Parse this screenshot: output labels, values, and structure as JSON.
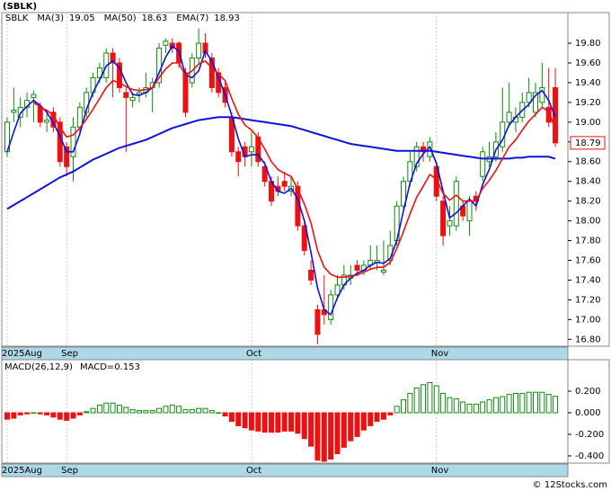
{
  "title": "(SBLK)",
  "footer": "© 12Stocks.com",
  "chart_data": [
    {
      "type": "candlestick",
      "legend_title": "SBLK",
      "categories": [
        "2025Aug",
        null,
        null,
        null,
        null,
        null,
        null,
        null,
        null,
        "Sep",
        null,
        null,
        null,
        null,
        null,
        null,
        null,
        null,
        null,
        null,
        null,
        null,
        null,
        null,
        null,
        null,
        null,
        null,
        null,
        null,
        null,
        null,
        null,
        null,
        null,
        null,
        null,
        "Oct",
        null,
        null,
        null,
        null,
        null,
        null,
        null,
        null,
        null,
        null,
        null,
        null,
        null,
        null,
        null,
        null,
        null,
        null,
        null,
        null,
        null,
        null,
        null,
        null,
        null,
        null,
        null,
        "Nov",
        null,
        null,
        null,
        null,
        null,
        null,
        null,
        null,
        null,
        null,
        null,
        null,
        null,
        null,
        null,
        null,
        null,
        null
      ],
      "open": [
        18.7,
        19.1,
        19.05,
        19.15,
        19.25,
        19.15,
        19.0,
        19.1,
        19.0,
        18.75,
        18.65,
        18.95,
        19.1,
        19.3,
        19.45,
        19.45,
        19.7,
        19.6,
        19.3,
        19.22,
        19.28,
        19.3,
        19.35,
        19.4,
        19.78,
        19.8,
        19.8,
        19.5,
        19.4,
        19.65,
        19.8,
        19.65,
        19.5,
        19.35,
        19.05,
        18.7,
        18.75,
        18.7,
        18.85,
        18.55,
        18.4,
        18.35,
        18.4,
        18.3,
        18.35,
        17.95,
        17.5,
        17.1,
        17.1,
        17.0,
        17.25,
        17.35,
        17.42,
        17.55,
        17.5,
        17.55,
        17.58,
        17.48,
        17.6,
        17.8,
        18.15,
        18.4,
        18.55,
        18.75,
        18.65,
        18.55,
        18.2,
        17.95,
        17.95,
        18.15,
        18.0,
        18.25,
        18.45,
        18.6,
        18.65,
        18.75,
        19.0,
        19.0,
        19.05,
        19.2,
        19.1,
        19.2,
        19.15,
        19.35
      ],
      "high": [
        19.05,
        19.35,
        19.25,
        19.3,
        19.32,
        19.2,
        19.1,
        19.15,
        19.05,
        18.8,
        19.05,
        19.2,
        19.35,
        19.5,
        19.6,
        19.75,
        19.75,
        19.65,
        19.35,
        19.3,
        19.35,
        19.5,
        19.45,
        19.8,
        19.85,
        19.85,
        19.82,
        19.55,
        19.7,
        19.95,
        19.9,
        19.7,
        19.55,
        19.4,
        19.1,
        18.75,
        18.8,
        18.9,
        18.9,
        18.6,
        18.45,
        18.45,
        18.5,
        18.45,
        18.4,
        18.0,
        17.6,
        17.15,
        17.45,
        17.3,
        17.45,
        17.55,
        17.55,
        17.6,
        17.6,
        17.75,
        17.75,
        17.8,
        17.9,
        18.2,
        18.45,
        18.7,
        18.8,
        18.8,
        18.85,
        18.6,
        18.25,
        18.15,
        18.45,
        18.2,
        18.25,
        18.3,
        18.75,
        18.8,
        18.9,
        19.35,
        19.4,
        19.15,
        19.3,
        19.45,
        19.4,
        19.6,
        19.55,
        19.55
      ],
      "low": [
        18.65,
        19.0,
        18.95,
        19.05,
        19.0,
        18.95,
        18.9,
        18.9,
        18.55,
        18.45,
        18.4,
        18.9,
        19.05,
        19.25,
        19.4,
        19.4,
        19.25,
        19.3,
        18.7,
        19.15,
        19.2,
        19.25,
        19.1,
        19.35,
        19.7,
        19.7,
        19.55,
        19.05,
        19.35,
        19.6,
        19.65,
        19.3,
        19.25,
        19.15,
        18.65,
        18.45,
        18.55,
        18.55,
        18.55,
        18.35,
        18.15,
        18.25,
        18.3,
        18.25,
        17.9,
        17.65,
        17.35,
        16.75,
        16.95,
        16.95,
        17.2,
        17.3,
        17.35,
        17.45,
        17.45,
        17.5,
        17.5,
        17.45,
        17.55,
        17.75,
        18.1,
        18.35,
        18.5,
        18.6,
        18.6,
        18.2,
        17.75,
        17.85,
        17.9,
        18.0,
        17.85,
        18.1,
        18.4,
        18.55,
        18.6,
        18.7,
        18.95,
        18.9,
        19.0,
        19.15,
        19.05,
        19.15,
        18.95,
        18.75
      ],
      "close": [
        19.0,
        19.12,
        19.15,
        19.22,
        19.28,
        19.0,
        19.02,
        18.95,
        18.6,
        18.55,
        18.95,
        19.15,
        19.3,
        19.45,
        19.55,
        19.7,
        19.6,
        19.35,
        19.25,
        19.25,
        19.3,
        19.35,
        19.4,
        19.75,
        19.82,
        19.75,
        19.6,
        19.1,
        19.65,
        19.8,
        19.7,
        19.35,
        19.3,
        19.2,
        18.7,
        18.6,
        18.65,
        18.75,
        18.6,
        18.4,
        18.2,
        18.3,
        18.35,
        18.35,
        17.95,
        17.7,
        17.4,
        16.85,
        17.05,
        17.25,
        17.35,
        17.45,
        17.45,
        17.5,
        17.55,
        17.6,
        17.6,
        17.5,
        17.75,
        18.15,
        18.4,
        18.6,
        18.75,
        18.7,
        18.8,
        18.25,
        17.85,
        18.0,
        18.4,
        18.05,
        18.2,
        18.2,
        18.7,
        18.65,
        18.8,
        19.0,
        19.1,
        19.05,
        19.2,
        19.3,
        19.3,
        19.35,
        19.0,
        18.79
      ],
      "up_color": "#118811",
      "down_color": "#ee1111",
      "series": [
        {
          "name": "MA(3)",
          "color": "#1111dd",
          "values": [
            18.7,
            18.9,
            19.09,
            19.16,
            19.22,
            19.17,
            19.1,
            18.99,
            18.86,
            18.7,
            18.7,
            18.88,
            19.13,
            19.3,
            19.43,
            19.57,
            19.62,
            19.55,
            19.4,
            19.28,
            19.27,
            19.3,
            19.35,
            19.5,
            19.66,
            19.77,
            19.72,
            19.48,
            19.45,
            19.52,
            19.72,
            19.62,
            19.45,
            19.28,
            19.07,
            18.83,
            18.65,
            18.67,
            18.67,
            18.58,
            18.4,
            18.3,
            18.28,
            18.33,
            18.22,
            18.0,
            17.68,
            17.32,
            17.1,
            17.05,
            17.22,
            17.35,
            17.42,
            17.47,
            17.5,
            17.55,
            17.58,
            17.57,
            17.62,
            17.8,
            18.1,
            18.38,
            18.58,
            18.68,
            18.75,
            18.58,
            18.3,
            18.03,
            18.08,
            18.15,
            18.22,
            18.15,
            18.37,
            18.52,
            18.72,
            18.82,
            18.97,
            19.05,
            19.12,
            19.18,
            19.27,
            19.32,
            19.22,
            19.05
          ]
        },
        {
          "name": "MA(50)",
          "color": "#1111dd",
          "values": [
            18.12,
            18.16,
            18.2,
            18.24,
            18.28,
            18.32,
            18.36,
            18.4,
            18.44,
            18.47,
            18.5,
            18.54,
            18.58,
            18.62,
            18.65,
            18.68,
            18.71,
            18.74,
            18.76,
            18.78,
            18.8,
            18.82,
            18.85,
            18.88,
            18.91,
            18.94,
            18.96,
            18.98,
            19.0,
            19.02,
            19.03,
            19.04,
            19.05,
            19.05,
            19.05,
            19.04,
            19.03,
            19.02,
            19.01,
            19.0,
            18.99,
            18.98,
            18.97,
            18.96,
            18.94,
            18.92,
            18.9,
            18.88,
            18.86,
            18.84,
            18.82,
            18.8,
            18.78,
            18.77,
            18.76,
            18.75,
            18.74,
            18.73,
            18.72,
            18.71,
            18.71,
            18.71,
            18.71,
            18.71,
            18.71,
            18.7,
            18.69,
            18.68,
            18.67,
            18.66,
            18.65,
            18.64,
            18.63,
            18.63,
            18.63,
            18.63,
            18.63,
            18.64,
            18.64,
            18.65,
            18.65,
            18.65,
            18.65,
            18.63
          ]
        },
        {
          "name": "EMA(7)",
          "color": "#ee1111",
          "values": [
            null,
            null,
            null,
            null,
            19.2,
            19.15,
            19.12,
            19.07,
            18.95,
            18.85,
            18.87,
            18.94,
            19.03,
            19.13,
            19.24,
            19.35,
            19.42,
            19.4,
            19.36,
            19.33,
            19.32,
            19.33,
            19.35,
            19.45,
            19.54,
            19.6,
            19.6,
            19.47,
            19.52,
            19.59,
            19.62,
            19.55,
            19.49,
            19.42,
            19.24,
            19.08,
            18.97,
            18.92,
            18.84,
            18.73,
            18.6,
            18.52,
            18.48,
            18.45,
            18.32,
            18.17,
            17.98,
            17.7,
            17.53,
            17.46,
            17.43,
            17.43,
            17.44,
            17.45,
            17.48,
            17.51,
            17.53,
            17.53,
            17.58,
            17.72,
            17.89,
            18.07,
            18.24,
            18.35,
            18.47,
            18.42,
            18.28,
            18.21,
            18.26,
            18.2,
            18.2,
            18.2,
            18.33,
            18.41,
            18.51,
            18.63,
            18.75,
            18.82,
            18.92,
            19.01,
            19.08,
            19.15,
            19.11,
            18.93
          ]
        }
      ],
      "ylim": [
        16.73,
        20.11
      ],
      "yticks": [
        {
          "value": 16.8,
          "label": "16.80"
        },
        {
          "value": 17.0,
          "label": "17.00"
        },
        {
          "value": 17.2,
          "label": "17.20"
        },
        {
          "value": 17.4,
          "label": "17.40"
        },
        {
          "value": 17.6,
          "label": "17.60"
        },
        {
          "value": 17.8,
          "label": "17.80"
        },
        {
          "value": 18.0,
          "label": "18.00"
        },
        {
          "value": 18.2,
          "label": "18.20"
        },
        {
          "value": 18.4,
          "label": "18.40"
        },
        {
          "value": 18.6,
          "label": "18.60"
        },
        {
          "value": 18.8,
          "label": "18.80"
        },
        {
          "value": 19.0,
          "label": "19.00"
        },
        {
          "value": 19.2,
          "label": "19.20"
        },
        {
          "value": 19.4,
          "label": "19.40"
        },
        {
          "value": 19.6,
          "label": "19.60"
        },
        {
          "value": 19.8,
          "label": "19.80"
        }
      ],
      "grid": true
    },
    {
      "type": "bar",
      "legend_title": "MACD(26,12,9)",
      "legend_value": "MACD=0.153",
      "categories": [
        "2025Aug",
        null,
        null,
        null,
        null,
        null,
        null,
        null,
        null,
        "Sep",
        null,
        null,
        null,
        null,
        null,
        null,
        null,
        null,
        null,
        null,
        null,
        null,
        null,
        null,
        null,
        null,
        null,
        null,
        null,
        null,
        null,
        null,
        null,
        null,
        null,
        null,
        null,
        "Oct",
        null,
        null,
        null,
        null,
        null,
        null,
        null,
        null,
        null,
        null,
        null,
        null,
        null,
        null,
        null,
        null,
        null,
        null,
        null,
        null,
        null,
        null,
        null,
        null,
        null,
        null,
        null,
        "Nov",
        null,
        null,
        null,
        null,
        null,
        null,
        null,
        null,
        null,
        null,
        null,
        null,
        null,
        null,
        null,
        null,
        null,
        null
      ],
      "values": [
        -0.06,
        -0.05,
        -0.02,
        -0.01,
        0.0,
        -0.01,
        -0.02,
        -0.04,
        -0.06,
        -0.07,
        -0.05,
        -0.02,
        0.01,
        0.04,
        0.07,
        0.09,
        0.09,
        0.07,
        0.05,
        0.03,
        0.02,
        0.02,
        0.02,
        0.04,
        0.06,
        0.07,
        0.06,
        0.03,
        0.03,
        0.04,
        0.04,
        0.02,
        0.0,
        -0.03,
        -0.08,
        -0.12,
        -0.14,
        -0.16,
        -0.17,
        -0.18,
        -0.18,
        -0.18,
        -0.17,
        -0.17,
        -0.19,
        -0.24,
        -0.31,
        -0.44,
        -0.45,
        -0.43,
        -0.38,
        -0.32,
        -0.26,
        -0.22,
        -0.16,
        -0.12,
        -0.08,
        -0.06,
        -0.02,
        0.06,
        0.12,
        0.18,
        0.23,
        0.26,
        0.28,
        0.25,
        0.18,
        0.14,
        0.13,
        0.1,
        0.08,
        0.08,
        0.1,
        0.12,
        0.14,
        0.15,
        0.17,
        0.18,
        0.18,
        0.19,
        0.19,
        0.19,
        0.17,
        0.153
      ],
      "up_color": "#118811",
      "down_color": "#ee1111",
      "ylim": [
        -0.467,
        0.492
      ],
      "yticks": [
        {
          "value": -0.4,
          "label": "-0.400"
        },
        {
          "value": -0.2,
          "label": "-0.200"
        },
        {
          "value": 0,
          "label": "0.000"
        },
        {
          "value": 0.2,
          "label": "0.200"
        }
      ],
      "grid": true
    }
  ]
}
